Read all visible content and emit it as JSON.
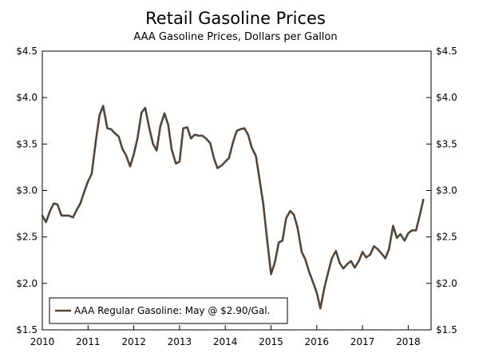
{
  "colors": {
    "series": "#54453a",
    "axis": "#000000",
    "background": "#ffffff"
  },
  "chart_data": {
    "type": "line",
    "title": "Retail Gasoline Prices",
    "subtitle": "AAA Gasoline Prices, Dollars per Gallon",
    "xlabel": "",
    "ylabel": "",
    "xlim": [
      2010.0,
      2018.5
    ],
    "ylim": [
      1.5,
      4.5
    ],
    "grid": false,
    "legend_position": "bottom-left",
    "x_ticks": [
      2010,
      2011,
      2012,
      2013,
      2014,
      2015,
      2016,
      2017,
      2018
    ],
    "x_tick_labels": [
      "2010",
      "2011",
      "2012",
      "2013",
      "2014",
      "2015",
      "2016",
      "2017",
      "2018"
    ],
    "y_ticks": [
      1.5,
      2.0,
      2.5,
      3.0,
      3.5,
      4.0,
      4.5
    ],
    "y_tick_labels_left": [
      "$1.5",
      "$2.0",
      "$2.5",
      "$3.0",
      "$3.5",
      "$4.0",
      "$4.5"
    ],
    "y_tick_labels_right": [
      "$1.5",
      "$2.0",
      "$2.5",
      "$3.0",
      "$3.5",
      "$4.0",
      "$4.5"
    ],
    "series": [
      {
        "name": "AAA Regular Gasoline: May @ $2.90/Gal.",
        "x": [
          2010.0,
          2010.08,
          2010.17,
          2010.25,
          2010.33,
          2010.42,
          2010.5,
          2010.58,
          2010.67,
          2010.75,
          2010.83,
          2010.92,
          2011.0,
          2011.08,
          2011.17,
          2011.25,
          2011.33,
          2011.42,
          2011.5,
          2011.58,
          2011.67,
          2011.75,
          2011.83,
          2011.92,
          2012.0,
          2012.08,
          2012.17,
          2012.25,
          2012.33,
          2012.42,
          2012.5,
          2012.58,
          2012.67,
          2012.75,
          2012.83,
          2012.92,
          2013.0,
          2013.08,
          2013.17,
          2013.25,
          2013.33,
          2013.42,
          2013.5,
          2013.58,
          2013.67,
          2013.75,
          2013.83,
          2013.92,
          2014.0,
          2014.08,
          2014.17,
          2014.25,
          2014.33,
          2014.42,
          2014.5,
          2014.58,
          2014.67,
          2014.75,
          2014.83,
          2014.92,
          2015.0,
          2015.08,
          2015.17,
          2015.25,
          2015.33,
          2015.42,
          2015.5,
          2015.58,
          2015.67,
          2015.75,
          2015.83,
          2015.92,
          2016.0,
          2016.08,
          2016.17,
          2016.25,
          2016.33,
          2016.42,
          2016.5,
          2016.58,
          2016.67,
          2016.75,
          2016.83,
          2016.92,
          2017.0,
          2017.08,
          2017.17,
          2017.25,
          2017.33,
          2017.42,
          2017.5,
          2017.58,
          2017.67,
          2017.75,
          2017.83,
          2017.92,
          2018.0,
          2018.08,
          2018.17,
          2018.25,
          2018.33
        ],
        "y": [
          2.73,
          2.66,
          2.78,
          2.86,
          2.85,
          2.73,
          2.73,
          2.73,
          2.71,
          2.79,
          2.86,
          2.99,
          3.1,
          3.18,
          3.53,
          3.81,
          3.91,
          3.67,
          3.66,
          3.62,
          3.58,
          3.45,
          3.38,
          3.26,
          3.39,
          3.56,
          3.84,
          3.89,
          3.69,
          3.5,
          3.43,
          3.69,
          3.83,
          3.71,
          3.44,
          3.29,
          3.31,
          3.67,
          3.68,
          3.56,
          3.6,
          3.59,
          3.59,
          3.56,
          3.51,
          3.35,
          3.24,
          3.27,
          3.31,
          3.35,
          3.52,
          3.64,
          3.66,
          3.67,
          3.6,
          3.46,
          3.37,
          3.12,
          2.86,
          2.45,
          2.1,
          2.22,
          2.44,
          2.46,
          2.7,
          2.78,
          2.74,
          2.6,
          2.34,
          2.26,
          2.13,
          2.01,
          1.9,
          1.73,
          1.96,
          2.12,
          2.27,
          2.35,
          2.22,
          2.16,
          2.21,
          2.24,
          2.17,
          2.24,
          2.34,
          2.28,
          2.31,
          2.4,
          2.37,
          2.32,
          2.27,
          2.37,
          2.62,
          2.49,
          2.53,
          2.46,
          2.54,
          2.57,
          2.57,
          2.73,
          2.9
        ]
      }
    ]
  }
}
